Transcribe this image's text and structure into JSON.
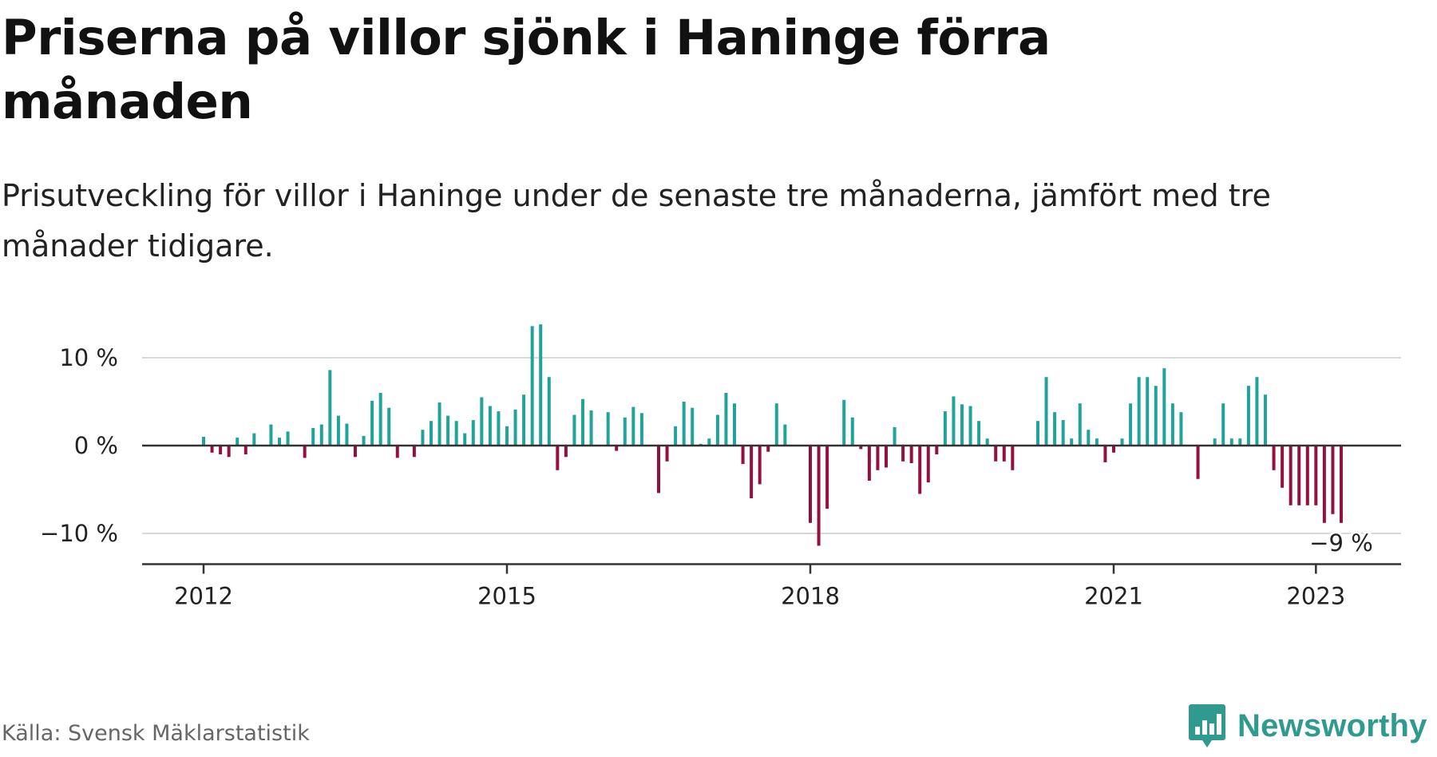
{
  "title": "Priserna på villor sjönk i Haninge förra månaden",
  "subtitle": "Prisutveckling för villor i Haninge under de senaste tre månaderna, jämfört med tre månader tidigare.",
  "source": "Källa: Svensk Mäklarstatistik",
  "logo_text": "Newsworthy",
  "colors": {
    "positive": "#1fa39a",
    "negative": "#96103f",
    "gridline": "#d9d9d9",
    "axis": "#333333",
    "logo": "#2f9b8f"
  },
  "chart_data": {
    "type": "bar",
    "x_start": "2012-01",
    "x_end": "2023-01",
    "x_ticks": [
      "2012",
      "2015",
      "2018",
      "2021",
      "2023"
    ],
    "y_ticks": [
      {
        "value": 10,
        "label": "10 %"
      },
      {
        "value": 0,
        "label": "0 %"
      },
      {
        "value": -10,
        "label": "−10 %"
      }
    ],
    "ylim": [
      -13.5,
      12
    ],
    "last_label": "−9 %",
    "values": [
      1,
      -0.8,
      -1,
      -1.3,
      0.9,
      -1,
      1.4,
      0,
      2.4,
      0.9,
      1.6,
      0,
      -1.4,
      2,
      2.4,
      8.6,
      3.4,
      2.5,
      -1.3,
      1.1,
      5.1,
      6,
      4.3,
      -1.4,
      0,
      -1.3,
      1.8,
      2.8,
      4.9,
      3.4,
      2.8,
      1.4,
      2.9,
      5.5,
      4.5,
      3.9,
      2.2,
      4.1,
      5.8,
      13.6,
      13.8,
      7.8,
      -2.8,
      -1.3,
      3.5,
      5.3,
      4,
      0,
      3.8,
      -0.6,
      3.2,
      4.4,
      3.7,
      0,
      -5.4,
      -1.8,
      2.2,
      5,
      4.3,
      0.2,
      0.8,
      3.5,
      6,
      4.8,
      -2.1,
      -6,
      -4.4,
      -0.7,
      4.8,
      2.4,
      0,
      0,
      -8.8,
      -11.4,
      -7.2,
      0,
      5.2,
      3.2,
      -0.4,
      -4,
      -2.8,
      -2.5,
      2.1,
      -1.8,
      -2,
      -5.5,
      -4.2,
      -1,
      3.9,
      5.6,
      4.7,
      4.5,
      2.8,
      0.8,
      -1.8,
      -1.8,
      -2.8,
      0,
      0,
      2.8,
      7.8,
      3.8,
      2.9,
      0.8,
      4.8,
      1.8,
      0.8,
      -1.9,
      -0.8,
      0.8,
      4.8,
      7.8,
      7.8,
      6.8,
      8.8,
      4.8,
      3.8,
      0,
      -3.8,
      0,
      0.8,
      4.8,
      0.8,
      0.8,
      6.8,
      7.8,
      5.8,
      -2.8,
      -4.8,
      -6.8,
      -6.8,
      -6.8,
      -6.8,
      -8.8,
      -7.8,
      -8.8
    ]
  }
}
